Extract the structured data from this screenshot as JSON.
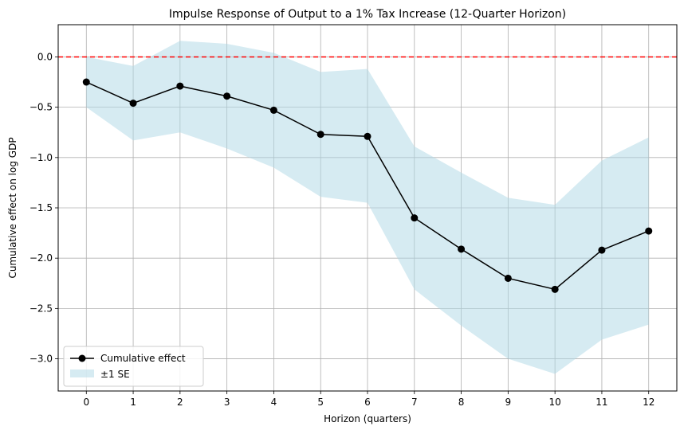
{
  "chart_data": {
    "type": "line",
    "title": "Impulse Response of Output to a 1% Tax Increase (12-Quarter Horizon)",
    "xlabel": "Horizon (quarters)",
    "ylabel": "Cumulative effect on log GDP",
    "x": [
      0,
      1,
      2,
      3,
      4,
      5,
      6,
      7,
      8,
      9,
      10,
      11,
      12
    ],
    "x_tick_labels": [
      "0",
      "1",
      "2",
      "3",
      "4",
      "5",
      "6",
      "7",
      "8",
      "9",
      "10",
      "11",
      "12"
    ],
    "y_ticks": [
      0.0,
      -0.5,
      -1.0,
      -1.5,
      -2.0,
      -2.5,
      -3.0
    ],
    "y_tick_labels": [
      "0.0",
      "−0.5",
      "−1.0",
      "−1.5",
      "−2.0",
      "−2.5",
      "−3.0"
    ],
    "xlim": [
      -0.6,
      12.6
    ],
    "ylim": [
      -3.32,
      0.32
    ],
    "grid": true,
    "legend_position": "lower-left",
    "reference_line": {
      "y": 0.0,
      "color": "#ff0000",
      "style": "dashed"
    },
    "series": [
      {
        "name": "Cumulative effect",
        "color": "#000000",
        "marker": "circle",
        "values": [
          -0.25,
          -0.46,
          -0.29,
          -0.39,
          -0.53,
          -0.77,
          -0.79,
          -1.6,
          -1.91,
          -2.2,
          -2.31,
          -1.92,
          -1.73
        ]
      }
    ],
    "band": {
      "name": "±1 SE",
      "color": "#add8e6",
      "lower": [
        -0.5,
        -0.83,
        -0.75,
        -0.91,
        -1.1,
        -1.39,
        -1.45,
        -2.31,
        -2.67,
        -3.0,
        -3.15,
        -2.81,
        -2.66
      ],
      "upper": [
        0.0,
        -0.09,
        0.16,
        0.13,
        0.04,
        -0.15,
        -0.12,
        -0.89,
        -1.15,
        -1.4,
        -1.47,
        -1.03,
        -0.8
      ]
    }
  }
}
